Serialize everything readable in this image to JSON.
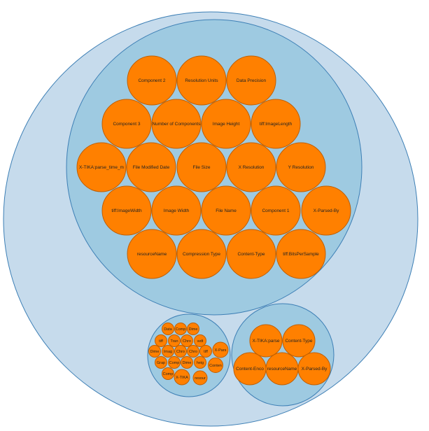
{
  "chart_data": {
    "type": "circle-pack",
    "colors": {
      "outer": "#c6dbec",
      "group": "#9ecae1",
      "leaf": "#ff8000",
      "stroke": "#3d7fb5"
    },
    "groups": [
      {
        "leaves": [
          "Component 2",
          "Resolution Units",
          "Data Precision",
          "Component 3",
          "Number of Components",
          "Image Height",
          "tiff:ImageLength",
          "X-TIKA:parse_time_m",
          "File Modified Date",
          "File Size",
          "X Resolution",
          "Y Resolution",
          "tiff:ImageWidth",
          "Image Width",
          "File Name",
          "Component 1",
          "X-Parsed-By",
          "resourceName",
          "Compression Type",
          "Content-Type",
          "tiff:BitsPerSample"
        ]
      },
      {
        "leaves": [
          "Data",
          "Comp",
          "Dime",
          "tiff",
          "Tran",
          "Chro",
          "wdt",
          "Dime",
          "Imag",
          "Chro",
          "Chro",
          "tiff",
          "X-Pars",
          "Grap",
          "Comp",
          "Dime",
          "heig",
          "Conten",
          "Comp",
          "X-TIKA",
          "resour"
        ]
      },
      {
        "leaves": [
          "X-TIKA:parse",
          "Content-Type",
          "Content-Enco",
          "resourceName",
          "X-Parsed-By"
        ]
      }
    ]
  }
}
